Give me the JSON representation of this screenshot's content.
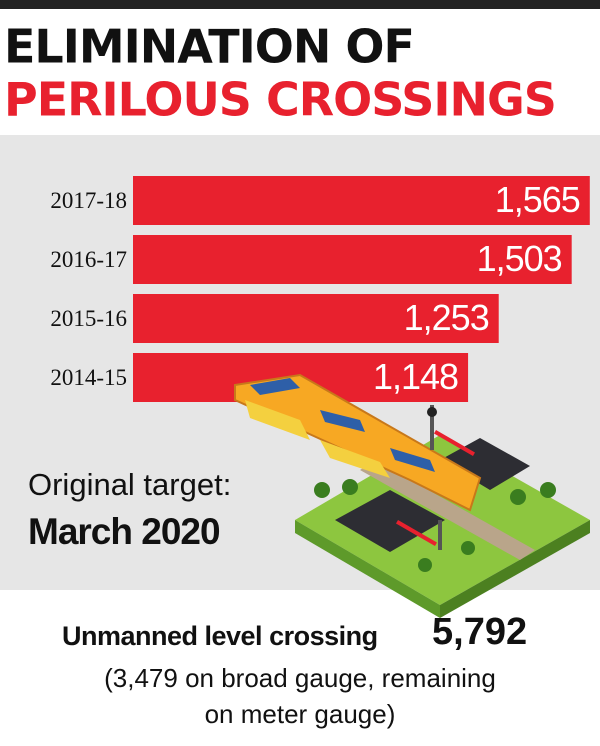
{
  "chart_data": {
    "type": "bar",
    "orientation": "horizontal",
    "title": "ELIMINATION OF",
    "subtitle": "PERILOUS CROSSINGS",
    "categories": [
      "2017-18",
      "2016-17",
      "2015-16",
      "2014-15"
    ],
    "values": [
      1565,
      1503,
      1253,
      1148
    ],
    "value_labels": [
      "1,565",
      "1,503",
      "1,253",
      "1,148"
    ],
    "color": "#e8212e",
    "xlim": [
      0,
      1600
    ],
    "annotations": {
      "target_label": "Original target:",
      "target_date": "March 2020",
      "footer_label": "Unmanned level crossing",
      "footer_value": "5,792",
      "footer_note": [
        "(3,479 on broad gauge, remaining",
        "on meter gauge)"
      ]
    }
  }
}
